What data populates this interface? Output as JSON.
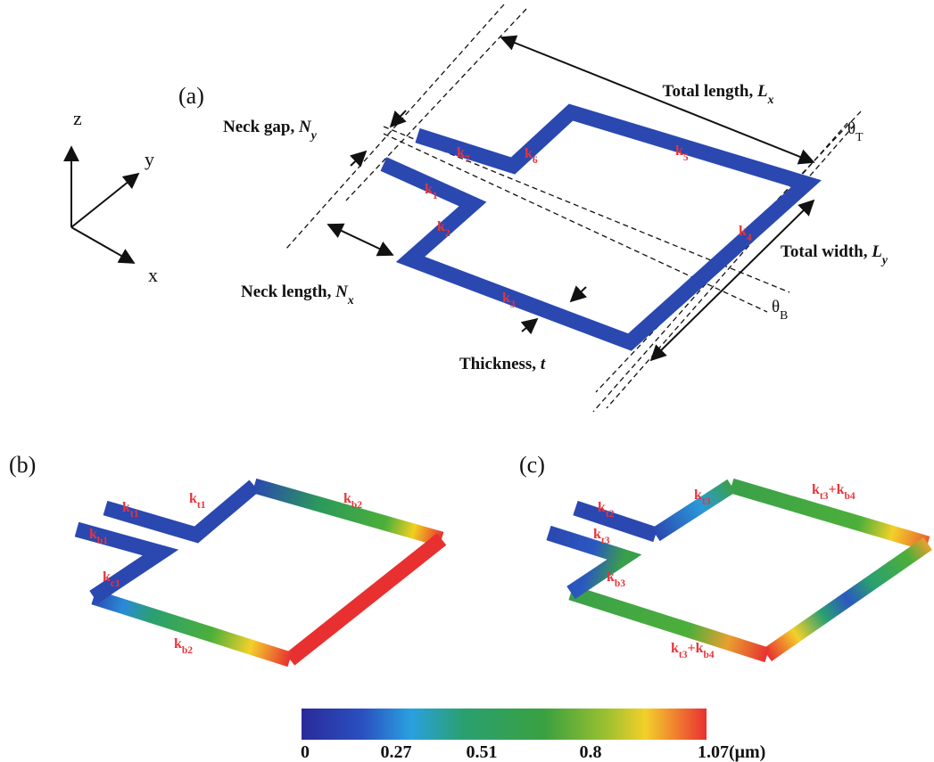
{
  "panel_a": {
    "label": "(a)",
    "axes": {
      "z": "z",
      "y": "y",
      "x": "x"
    },
    "annotations": {
      "total_length": [
        {
          "text": "Total length, "
        },
        {
          "text": "L",
          "italic": true
        },
        {
          "text": "x",
          "italic": true,
          "sub": true
        }
      ],
      "neck_gap": [
        {
          "text": "Neck gap, "
        },
        {
          "text": "N",
          "italic": true
        },
        {
          "text": "y",
          "italic": true,
          "sub": true
        }
      ],
      "theta_t": [
        {
          "text": "θ"
        },
        {
          "text": "T",
          "sub": true
        }
      ],
      "total_width": [
        {
          "text": "Total width, "
        },
        {
          "text": "L",
          "italic": true
        },
        {
          "text": "y",
          "italic": true,
          "sub": true
        }
      ],
      "theta_b": [
        {
          "text": "θ"
        },
        {
          "text": "B",
          "sub": true
        }
      ],
      "neck_length": [
        {
          "text": "Neck length, "
        },
        {
          "text": "N",
          "italic": true
        },
        {
          "text": "x",
          "italic": true,
          "sub": true
        }
      ],
      "thickness": [
        {
          "text": "Thickness, "
        },
        {
          "text": "t",
          "italic": true
        }
      ]
    },
    "members": [
      [
        {
          "text": "k"
        },
        {
          "text": "7",
          "sub": true
        }
      ],
      [
        {
          "text": "k"
        },
        {
          "text": "6",
          "sub": true
        }
      ],
      [
        {
          "text": "k"
        },
        {
          "text": "5",
          "sub": true
        }
      ],
      [
        {
          "text": "k"
        },
        {
          "text": "1",
          "sub": true
        }
      ],
      [
        {
          "text": "k"
        },
        {
          "text": "2",
          "sub": true
        }
      ],
      [
        {
          "text": "k"
        },
        {
          "text": "4",
          "sub": true
        }
      ],
      [
        {
          "text": "k"
        },
        {
          "text": "3",
          "sub": true
        }
      ]
    ]
  },
  "panel_b": {
    "label": "(b)",
    "members": [
      [
        {
          "text": "k"
        },
        {
          "text": "t1",
          "sub": true
        }
      ],
      [
        {
          "text": "k"
        },
        {
          "text": "t1",
          "sub": true
        }
      ],
      [
        {
          "text": "k"
        },
        {
          "text": "b1",
          "sub": true
        }
      ],
      [
        {
          "text": "k"
        },
        {
          "text": "c1",
          "sub": true
        }
      ],
      [
        {
          "text": "k"
        },
        {
          "text": "b2",
          "sub": true
        }
      ],
      [
        {
          "text": "k"
        },
        {
          "text": "b2",
          "sub": true
        }
      ]
    ]
  },
  "panel_c": {
    "label": "(c)",
    "members": [
      [
        {
          "text": "k"
        },
        {
          "text": "t2",
          "sub": true
        }
      ],
      [
        {
          "text": "k"
        },
        {
          "text": "t3",
          "sub": true
        }
      ],
      [
        {
          "text": "k"
        },
        {
          "text": "t3",
          "sub": true
        },
        {
          "text": "+k"
        },
        {
          "text": "b4",
          "sub": true
        }
      ],
      [
        {
          "text": "k"
        },
        {
          "text": "t3",
          "sub": true
        }
      ],
      [
        {
          "text": "k"
        },
        {
          "text": "b3",
          "sub": true
        }
      ],
      [
        {
          "text": "k"
        },
        {
          "text": "t3",
          "sub": true
        },
        {
          "text": "+k"
        },
        {
          "text": "b4",
          "sub": true
        }
      ]
    ]
  },
  "colorbar": {
    "ticks": [
      "0",
      "0.27",
      "0.51",
      "0.8",
      "1.07(μm)"
    ]
  }
}
